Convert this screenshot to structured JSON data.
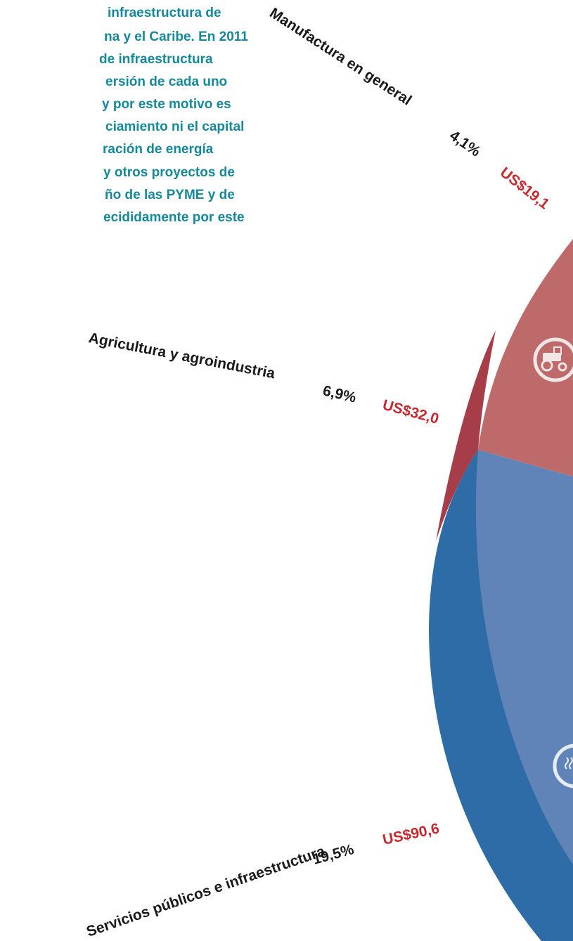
{
  "paragraph": {
    "lines": [
      "infraestructura de",
      "na y el Caribe. En 2011",
      "de infraestructura",
      "ersión de cada uno",
      "y por este motivo es",
      "ciamiento ni el capital",
      "ración de energía",
      "y otros proyectos de",
      "ño de las PYME y de",
      "ecididamente por este"
    ]
  },
  "segments": [
    {
      "label": "Manufactura en general",
      "share": "4,1%",
      "amount": "US$19,1"
    },
    {
      "label": "Agricultura y agroindustria",
      "share": "6,9%",
      "amount": "US$32,0"
    },
    {
      "label": "Servicios públicos e infraestructura",
      "share": "19,5%",
      "amount": "US$90,6"
    }
  ]
}
